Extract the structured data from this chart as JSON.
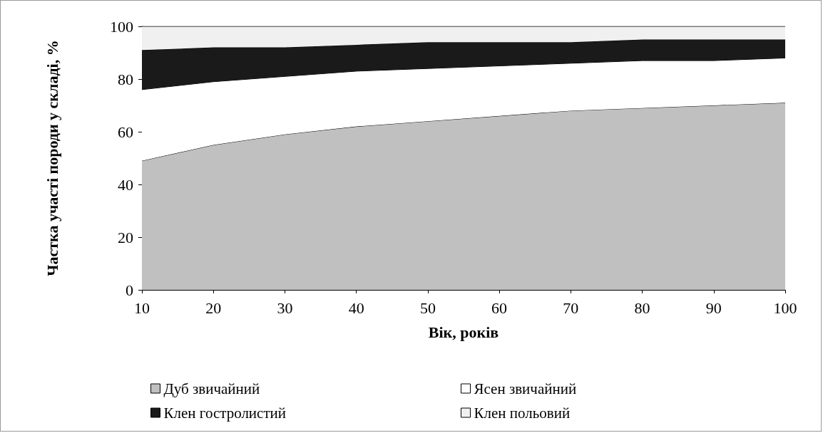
{
  "chart_data": {
    "type": "area",
    "stacked": true,
    "xlabel": "Вік, років",
    "ylabel": "Частка участі породи у складі, %",
    "categories": [
      "10",
      "20",
      "30",
      "40",
      "50",
      "60",
      "70",
      "80",
      "90",
      "100"
    ],
    "series": [
      {
        "name": "Дуб звичайний",
        "color": "#c0c0c0",
        "values": [
          49,
          55,
          59,
          62,
          64,
          66,
          68,
          69,
          70,
          71
        ]
      },
      {
        "name": "Ясен звичайний",
        "color": "#ffffff",
        "values": [
          27,
          24,
          22,
          21,
          20,
          19,
          18,
          18,
          17,
          17
        ]
      },
      {
        "name": "Клен гостролистий",
        "color": "#1a1a1a",
        "values": [
          15,
          13,
          11,
          10,
          10,
          9,
          8,
          8,
          8,
          7
        ]
      },
      {
        "name": "Клен польовий",
        "color": "#f0f0f0",
        "values": [
          9,
          8,
          8,
          7,
          6,
          6,
          6,
          5,
          5,
          5
        ]
      }
    ],
    "ylim": [
      0,
      100
    ],
    "yticks": [
      0,
      20,
      40,
      60,
      80,
      100
    ],
    "grid": false,
    "legend": "bottom"
  }
}
